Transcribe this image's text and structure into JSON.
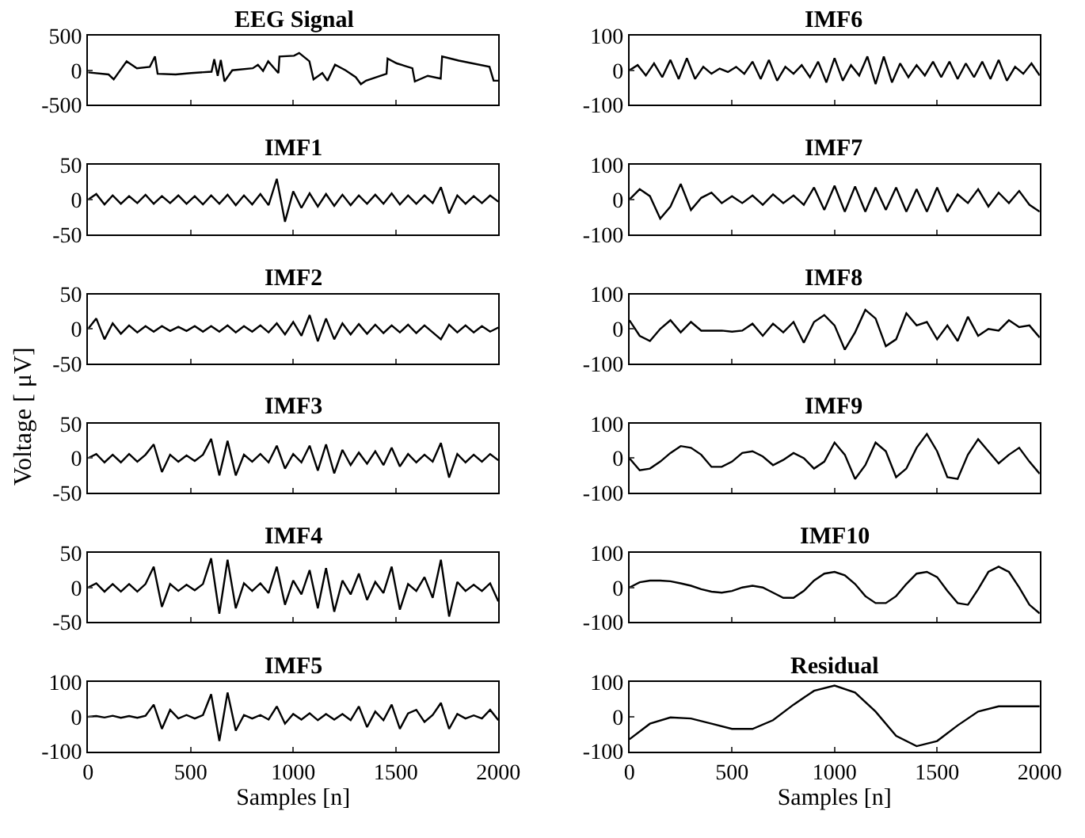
{
  "chart_data": [
    {
      "type": "line",
      "title": "EEG Signal",
      "color": "#000000",
      "xlim": [
        0,
        2000
      ],
      "xticks": [
        {
          "value": 0,
          "label": null
        },
        {
          "value": 500,
          "label": null
        },
        {
          "value": 1000,
          "label": null
        },
        {
          "value": 1500,
          "label": null
        },
        {
          "value": 2000,
          "label": null
        }
      ],
      "ylim": [
        -500,
        500
      ],
      "yticks": [
        -500,
        0,
        500
      ],
      "tick_labels": "y",
      "x": [
        0,
        100,
        125,
        188,
        238,
        301,
        326,
        339,
        427,
        502,
        602,
        615,
        632,
        647,
        665,
        703,
        803,
        828,
        853,
        878,
        928,
        933,
        1004,
        1029,
        1079,
        1099,
        1142,
        1167,
        1204,
        1255,
        1305,
        1330,
        1355,
        1455,
        1460,
        1505,
        1581,
        1593,
        1656,
        1719,
        1726,
        1807,
        1957,
        1977,
        2000
      ],
      "values": [
        -30,
        -60,
        -130,
        130,
        30,
        50,
        200,
        -50,
        -60,
        -40,
        -20,
        160,
        -80,
        150,
        -160,
        0,
        30,
        80,
        -10,
        130,
        -40,
        200,
        210,
        250,
        130,
        -130,
        -40,
        -150,
        80,
        0,
        -100,
        -200,
        -150,
        -50,
        170,
        100,
        30,
        -160,
        -80,
        -120,
        200,
        140,
        50,
        -150,
        -150
      ]
    },
    {
      "type": "line",
      "title": "IMF6",
      "color": "#000000",
      "xlim": [
        0,
        2000
      ],
      "xticks": [
        {
          "value": 0,
          "label": null
        },
        {
          "value": 500,
          "label": null
        },
        {
          "value": 1000,
          "label": null
        },
        {
          "value": 1500,
          "label": null
        },
        {
          "value": 2000,
          "label": null
        }
      ],
      "ylim": [
        -100,
        100
      ],
      "yticks": [
        -100,
        0,
        100
      ],
      "tick_labels": "y",
      "x": [
        0,
        40,
        80,
        120,
        160,
        200,
        240,
        280,
        320,
        360,
        400,
        440,
        480,
        520,
        560,
        600,
        640,
        680,
        720,
        760,
        800,
        840,
        880,
        920,
        960,
        1000,
        1040,
        1080,
        1120,
        1160,
        1200,
        1240,
        1280,
        1320,
        1360,
        1400,
        1440,
        1480,
        1520,
        1560,
        1600,
        1640,
        1680,
        1720,
        1760,
        1800,
        1840,
        1880,
        1920,
        1960,
        2000
      ],
      "values": [
        0,
        15,
        -15,
        20,
        -20,
        30,
        -25,
        35,
        -25,
        10,
        -10,
        5,
        -5,
        10,
        -10,
        25,
        -25,
        30,
        -30,
        10,
        -10,
        15,
        -20,
        25,
        -35,
        35,
        -30,
        15,
        -15,
        40,
        -40,
        40,
        -35,
        20,
        -20,
        15,
        -15,
        25,
        -20,
        25,
        -25,
        20,
        -20,
        25,
        -25,
        30,
        -30,
        10,
        -10,
        20,
        -15
      ]
    },
    {
      "type": "line",
      "title": "IMF1",
      "color": "#000000",
      "xlim": [
        0,
        2000
      ],
      "xticks": [
        {
          "value": 0,
          "label": null
        },
        {
          "value": 500,
          "label": null
        },
        {
          "value": 1000,
          "label": null
        },
        {
          "value": 1500,
          "label": null
        },
        {
          "value": 2000,
          "label": null
        }
      ],
      "ylim": [
        -50,
        50
      ],
      "yticks": [
        -50,
        0,
        50
      ],
      "tick_labels": "y",
      "x": [
        0,
        40,
        80,
        120,
        160,
        200,
        240,
        280,
        320,
        360,
        400,
        440,
        480,
        520,
        560,
        600,
        640,
        680,
        720,
        760,
        800,
        840,
        880,
        920,
        960,
        1000,
        1040,
        1080,
        1120,
        1160,
        1200,
        1240,
        1280,
        1320,
        1360,
        1400,
        1440,
        1480,
        1520,
        1560,
        1600,
        1640,
        1680,
        1720,
        1760,
        1800,
        1840,
        1880,
        1920,
        1960,
        2000
      ],
      "values": [
        0,
        8,
        -7,
        6,
        -6,
        5,
        -5,
        7,
        -6,
        5,
        -5,
        6,
        -6,
        5,
        -7,
        6,
        -6,
        7,
        -8,
        6,
        -7,
        8,
        -8,
        30,
        -32,
        12,
        -12,
        9,
        -10,
        8,
        -9,
        7,
        -8,
        6,
        -6,
        7,
        -6,
        9,
        -7,
        6,
        -6,
        6,
        -5,
        18,
        -20,
        6,
        -6,
        5,
        -5,
        6,
        -3
      ]
    },
    {
      "type": "line",
      "title": "IMF7",
      "color": "#000000",
      "xlim": [
        0,
        2000
      ],
      "xticks": [
        {
          "value": 0,
          "label": null
        },
        {
          "value": 500,
          "label": null
        },
        {
          "value": 1000,
          "label": null
        },
        {
          "value": 1500,
          "label": null
        },
        {
          "value": 2000,
          "label": null
        }
      ],
      "ylim": [
        -100,
        100
      ],
      "yticks": [
        -100,
        0,
        100
      ],
      "tick_labels": "y",
      "x": [
        0,
        50,
        100,
        150,
        200,
        250,
        300,
        350,
        400,
        450,
        500,
        550,
        600,
        650,
        700,
        750,
        800,
        850,
        900,
        950,
        1000,
        1050,
        1100,
        1150,
        1200,
        1250,
        1300,
        1350,
        1400,
        1450,
        1500,
        1550,
        1600,
        1650,
        1700,
        1750,
        1800,
        1850,
        1900,
        1950,
        2000
      ],
      "values": [
        0,
        30,
        10,
        -55,
        -20,
        45,
        -30,
        5,
        20,
        -10,
        10,
        -10,
        12,
        -15,
        15,
        -10,
        12,
        -15,
        35,
        -30,
        40,
        -35,
        38,
        -35,
        35,
        -30,
        35,
        -35,
        30,
        -35,
        35,
        -35,
        15,
        -10,
        30,
        -20,
        20,
        -10,
        25,
        -15,
        -35
      ]
    },
    {
      "type": "line",
      "title": "IMF2",
      "color": "#000000",
      "xlim": [
        0,
        2000
      ],
      "xticks": [
        {
          "value": 0,
          "label": null
        },
        {
          "value": 500,
          "label": null
        },
        {
          "value": 1000,
          "label": null
        },
        {
          "value": 1500,
          "label": null
        },
        {
          "value": 2000,
          "label": null
        }
      ],
      "ylim": [
        -50,
        50
      ],
      "yticks": [
        -50,
        0,
        50
      ],
      "tick_labels": "y",
      "ylabel": "Voltage [ μV]",
      "x": [
        0,
        40,
        80,
        120,
        160,
        200,
        240,
        280,
        320,
        360,
        400,
        440,
        480,
        520,
        560,
        600,
        640,
        680,
        720,
        760,
        800,
        840,
        880,
        920,
        960,
        1000,
        1040,
        1080,
        1120,
        1160,
        1200,
        1240,
        1280,
        1320,
        1360,
        1400,
        1440,
        1480,
        1520,
        1560,
        1600,
        1640,
        1680,
        1720,
        1760,
        1800,
        1840,
        1880,
        1920,
        1960,
        2000
      ],
      "values": [
        0,
        15,
        -15,
        8,
        -7,
        5,
        -5,
        4,
        -4,
        4,
        -3,
        3,
        -3,
        4,
        -4,
        4,
        -4,
        5,
        -5,
        4,
        -4,
        5,
        -5,
        8,
        -8,
        10,
        -10,
        20,
        -18,
        15,
        -15,
        8,
        -8,
        7,
        -7,
        6,
        -6,
        5,
        -5,
        6,
        -6,
        5,
        -5,
        -15,
        6,
        -5,
        5,
        -5,
        4,
        -4,
        2
      ]
    },
    {
      "type": "line",
      "title": "IMF8",
      "color": "#000000",
      "xlim": [
        0,
        2000
      ],
      "xticks": [
        {
          "value": 0,
          "label": null
        },
        {
          "value": 500,
          "label": null
        },
        {
          "value": 1000,
          "label": null
        },
        {
          "value": 1500,
          "label": null
        },
        {
          "value": 2000,
          "label": null
        }
      ],
      "ylim": [
        -100,
        100
      ],
      "yticks": [
        -100,
        0,
        100
      ],
      "tick_labels": "y",
      "x": [
        0,
        50,
        100,
        150,
        200,
        250,
        300,
        350,
        400,
        450,
        500,
        550,
        600,
        650,
        700,
        750,
        800,
        850,
        900,
        950,
        1000,
        1050,
        1100,
        1150,
        1200,
        1250,
        1300,
        1350,
        1400,
        1450,
        1500,
        1550,
        1600,
        1650,
        1700,
        1750,
        1800,
        1850,
        1900,
        1950,
        2000
      ],
      "values": [
        25,
        -20,
        -35,
        0,
        25,
        -10,
        20,
        -5,
        -5,
        -5,
        -8,
        -5,
        15,
        -20,
        15,
        -10,
        20,
        -40,
        20,
        40,
        10,
        -60,
        -10,
        55,
        30,
        -50,
        -30,
        45,
        10,
        20,
        -30,
        10,
        -35,
        35,
        -20,
        0,
        -5,
        25,
        5,
        10,
        -25
      ]
    },
    {
      "type": "line",
      "title": "IMF3",
      "color": "#000000",
      "xlim": [
        0,
        2000
      ],
      "xticks": [
        {
          "value": 0,
          "label": null
        },
        {
          "value": 500,
          "label": null
        },
        {
          "value": 1000,
          "label": null
        },
        {
          "value": 1500,
          "label": null
        },
        {
          "value": 2000,
          "label": null
        }
      ],
      "ylim": [
        -50,
        50
      ],
      "yticks": [
        -50,
        0,
        50
      ],
      "tick_labels": "y",
      "x": [
        0,
        40,
        80,
        120,
        160,
        200,
        240,
        280,
        320,
        360,
        400,
        440,
        480,
        520,
        560,
        600,
        640,
        680,
        720,
        760,
        800,
        840,
        880,
        920,
        960,
        1000,
        1040,
        1080,
        1120,
        1160,
        1200,
        1240,
        1280,
        1320,
        1360,
        1400,
        1440,
        1480,
        1520,
        1560,
        1600,
        1640,
        1680,
        1720,
        1760,
        1800,
        1840,
        1880,
        1920,
        1960,
        2000
      ],
      "values": [
        0,
        6,
        -6,
        5,
        -6,
        6,
        -5,
        5,
        20,
        -20,
        5,
        -5,
        4,
        -4,
        5,
        28,
        -25,
        25,
        -25,
        5,
        -5,
        6,
        -6,
        18,
        -15,
        6,
        -6,
        18,
        -18,
        20,
        -22,
        12,
        -10,
        8,
        -8,
        10,
        -10,
        15,
        -12,
        6,
        -6,
        5,
        -5,
        22,
        -28,
        6,
        -6,
        5,
        -5,
        6,
        -3
      ]
    },
    {
      "type": "line",
      "title": "IMF9",
      "color": "#000000",
      "xlim": [
        0,
        2000
      ],
      "xticks": [
        {
          "value": 0,
          "label": null
        },
        {
          "value": 500,
          "label": null
        },
        {
          "value": 1000,
          "label": null
        },
        {
          "value": 1500,
          "label": null
        },
        {
          "value": 2000,
          "label": null
        }
      ],
      "ylim": [
        -100,
        100
      ],
      "yticks": [
        -100,
        0,
        100
      ],
      "tick_labels": "y",
      "x": [
        0,
        50,
        100,
        150,
        200,
        250,
        300,
        350,
        400,
        450,
        500,
        550,
        600,
        650,
        700,
        750,
        800,
        850,
        900,
        950,
        1000,
        1050,
        1100,
        1150,
        1200,
        1250,
        1300,
        1350,
        1400,
        1450,
        1500,
        1550,
        1600,
        1650,
        1700,
        1750,
        1800,
        1850,
        1900,
        1950,
        2000
      ],
      "values": [
        0,
        -35,
        -30,
        -10,
        15,
        35,
        30,
        10,
        -25,
        -25,
        -10,
        15,
        20,
        5,
        -20,
        -5,
        15,
        0,
        -30,
        -10,
        45,
        10,
        -60,
        -20,
        45,
        20,
        -55,
        -30,
        30,
        70,
        20,
        -55,
        -60,
        10,
        55,
        20,
        -15,
        10,
        30,
        -10,
        -45
      ]
    },
    {
      "type": "line",
      "title": "IMF4",
      "color": "#000000",
      "xlim": [
        0,
        2000
      ],
      "xticks": [
        {
          "value": 0,
          "label": null
        },
        {
          "value": 500,
          "label": null
        },
        {
          "value": 1000,
          "label": null
        },
        {
          "value": 1500,
          "label": null
        },
        {
          "value": 2000,
          "label": null
        }
      ],
      "ylim": [
        -50,
        50
      ],
      "yticks": [
        -50,
        0,
        50
      ],
      "tick_labels": "y",
      "x": [
        0,
        40,
        80,
        120,
        160,
        200,
        240,
        280,
        320,
        360,
        400,
        440,
        480,
        520,
        560,
        600,
        640,
        680,
        720,
        760,
        800,
        840,
        880,
        920,
        960,
        1000,
        1040,
        1080,
        1120,
        1160,
        1200,
        1240,
        1280,
        1320,
        1360,
        1400,
        1440,
        1480,
        1520,
        1560,
        1600,
        1640,
        1680,
        1720,
        1760,
        1800,
        1840,
        1880,
        1920,
        1960,
        2000
      ],
      "values": [
        0,
        6,
        -6,
        5,
        -6,
        5,
        -6,
        5,
        30,
        -28,
        5,
        -5,
        4,
        -4,
        5,
        42,
        -38,
        40,
        -30,
        6,
        -5,
        6,
        -8,
        30,
        -25,
        10,
        -10,
        25,
        -30,
        28,
        -35,
        10,
        -10,
        20,
        -18,
        8,
        -8,
        30,
        -32,
        5,
        -5,
        15,
        -15,
        40,
        -42,
        8,
        -5,
        4,
        -5,
        6,
        -20
      ]
    },
    {
      "type": "line",
      "title": "IMF10",
      "color": "#000000",
      "xlim": [
        0,
        2000
      ],
      "xticks": [
        {
          "value": 0,
          "label": null
        },
        {
          "value": 500,
          "label": null
        },
        {
          "value": 1000,
          "label": null
        },
        {
          "value": 1500,
          "label": null
        },
        {
          "value": 2000,
          "label": null
        }
      ],
      "ylim": [
        -100,
        100
      ],
      "yticks": [
        -100,
        0,
        100
      ],
      "tick_labels": "y",
      "x": [
        0,
        50,
        100,
        150,
        200,
        250,
        300,
        350,
        400,
        450,
        500,
        550,
        600,
        650,
        700,
        750,
        800,
        850,
        900,
        950,
        1000,
        1050,
        1100,
        1150,
        1200,
        1250,
        1300,
        1350,
        1400,
        1450,
        1500,
        1550,
        1600,
        1650,
        1700,
        1750,
        1800,
        1850,
        1900,
        1950,
        2000
      ],
      "values": [
        0,
        15,
        20,
        20,
        18,
        12,
        5,
        -5,
        -12,
        -15,
        -10,
        0,
        5,
        0,
        -15,
        -30,
        -30,
        -10,
        20,
        40,
        45,
        35,
        10,
        -25,
        -45,
        -45,
        -25,
        10,
        40,
        45,
        30,
        -10,
        -45,
        -50,
        -5,
        45,
        60,
        45,
        0,
        -50,
        -75
      ]
    },
    {
      "type": "line",
      "title": "IMF5",
      "color": "#000000",
      "xlim": [
        0,
        2000
      ],
      "xticks": [
        0,
        500,
        1000,
        1500,
        2000
      ],
      "ylim": [
        -100,
        100
      ],
      "yticks": [
        -100,
        0,
        100
      ],
      "xlabel": "Samples [n]",
      "x": [
        0,
        40,
        80,
        120,
        160,
        200,
        240,
        280,
        320,
        360,
        400,
        440,
        480,
        520,
        560,
        600,
        640,
        680,
        720,
        760,
        800,
        840,
        880,
        920,
        960,
        1000,
        1040,
        1080,
        1120,
        1160,
        1200,
        1240,
        1280,
        1320,
        1360,
        1400,
        1440,
        1480,
        1520,
        1560,
        1600,
        1640,
        1680,
        1720,
        1760,
        1800,
        1840,
        1880,
        1920,
        1960,
        2000
      ],
      "values": [
        0,
        2,
        -2,
        3,
        -3,
        2,
        -3,
        3,
        35,
        -35,
        20,
        -5,
        5,
        -5,
        5,
        65,
        -70,
        70,
        -40,
        5,
        -5,
        5,
        -8,
        30,
        -20,
        8,
        -8,
        10,
        -10,
        8,
        -8,
        8,
        -10,
        30,
        -30,
        15,
        -10,
        35,
        -35,
        10,
        20,
        -15,
        5,
        40,
        -35,
        8,
        -5,
        4,
        -5,
        20,
        -10
      ]
    },
    {
      "type": "line",
      "title": "Residual",
      "color": "#000000",
      "xlim": [
        0,
        2000
      ],
      "xticks": [
        0,
        500,
        1000,
        1500,
        2000
      ],
      "ylim": [
        -100,
        100
      ],
      "yticks": [
        -100,
        0,
        100
      ],
      "xlabel": "Samples [n]",
      "x": [
        0,
        100,
        200,
        300,
        400,
        500,
        600,
        700,
        800,
        900,
        1000,
        1100,
        1200,
        1300,
        1400,
        1500,
        1600,
        1700,
        1800,
        1900,
        2000
      ],
      "values": [
        -65,
        -20,
        -2,
        -5,
        -20,
        -35,
        -35,
        -10,
        35,
        75,
        90,
        70,
        15,
        -55,
        -85,
        -70,
        -25,
        15,
        30,
        30,
        30
      ]
    }
  ]
}
